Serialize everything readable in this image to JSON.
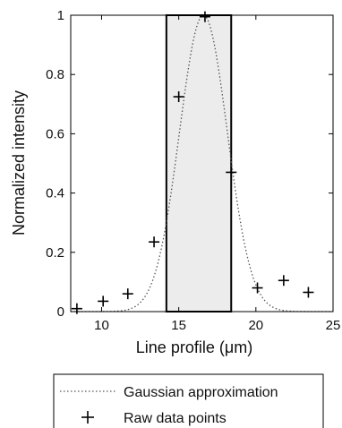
{
  "chart_data": {
    "type": "scatter",
    "xlabel": "Line profile (μm)",
    "ylabel": "Normalized intensity",
    "xlim": [
      8,
      25
    ],
    "ylim": [
      0,
      1
    ],
    "xticks": [
      "10",
      "15",
      "20",
      "25"
    ],
    "yticks": [
      "0",
      "0.2",
      "0.4",
      "0.6",
      "0.8",
      "1"
    ],
    "grid": false,
    "legend_position": "bottom, below plot",
    "series": [
      {
        "name": "Gaussian approximation",
        "kind": "line",
        "style": "dotted",
        "color": "#555555",
        "model": {
          "amplitude": 1.0,
          "mean": 16.6,
          "sigma": 1.55
        }
      },
      {
        "name": "Raw data points",
        "kind": "points",
        "marker": "+",
        "color": "#000000",
        "x": [
          8.4,
          10.1,
          11.7,
          13.4,
          15.0,
          16.7,
          18.4,
          20.1,
          21.8,
          23.4
        ],
        "y": [
          0.01,
          0.035,
          0.06,
          0.235,
          0.725,
          0.995,
          0.47,
          0.08,
          0.105,
          0.065
        ]
      }
    ],
    "highlight_region": {
      "x": [
        14.2,
        18.4
      ],
      "y": [
        0,
        1
      ],
      "fill": "#ececec",
      "stroke": "#000000"
    }
  }
}
